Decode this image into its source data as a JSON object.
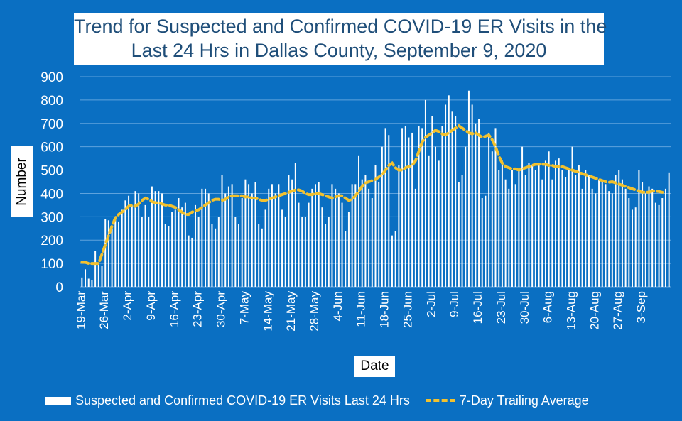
{
  "chart_data": {
    "type": "bar",
    "title_line1": "Trend for Suspected and Confirmed COVID-19 ER Visits in the",
    "title_line2": "Last 24 Hrs in Dallas County, September 9, 2020",
    "xlabel": "Date",
    "ylabel": "Number",
    "ylim": [
      0,
      900
    ],
    "yticks": [
      0,
      100,
      200,
      300,
      400,
      500,
      600,
      700,
      800,
      900
    ],
    "start_date": "19-Mar",
    "xtick_labels": [
      "19-Mar",
      "26-Mar",
      "2-Apr",
      "9-Apr",
      "16-Apr",
      "23-Apr",
      "30-Apr",
      "7-May",
      "14-May",
      "21-May",
      "28-May",
      "4-Jun",
      "11-Jun",
      "18-Jun",
      "25-Jun",
      "2-Jul",
      "9-Jul",
      "16-Jul",
      "23-Jul",
      "30-Jul",
      "6-Aug",
      "13-Aug",
      "20-Aug",
      "27-Aug",
      "3-Sep"
    ],
    "grid": true,
    "legend_position": "bottom",
    "series": [
      {
        "name": "Suspected and Confirmed COVID-19 ER Visits Last 24 Hrs",
        "type": "bar",
        "color": "#ffffff",
        "values": [
          40,
          75,
          35,
          30,
          155,
          100,
          90,
          290,
          285,
          260,
          300,
          280,
          330,
          370,
          390,
          350,
          410,
          400,
          300,
          350,
          300,
          430,
          410,
          410,
          400,
          270,
          260,
          320,
          330,
          380,
          340,
          360,
          220,
          210,
          350,
          300,
          420,
          420,
          400,
          270,
          250,
          300,
          480,
          400,
          430,
          440,
          300,
          270,
          380,
          460,
          440,
          400,
          450,
          270,
          250,
          330,
          420,
          440,
          400,
          440,
          330,
          300,
          480,
          460,
          530,
          360,
          300,
          300,
          360,
          420,
          440,
          450,
          340,
          270,
          300,
          440,
          420,
          400,
          360,
          240,
          320,
          440,
          440,
          560,
          460,
          480,
          420,
          380,
          520,
          450,
          600,
          680,
          650,
          220,
          240,
          520,
          680,
          690,
          640,
          660,
          420,
          690,
          680,
          800,
          560,
          730,
          600,
          540,
          690,
          780,
          820,
          750,
          730,
          450,
          480,
          600,
          840,
          780,
          700,
          720,
          380,
          390,
          660,
          580,
          680,
          500,
          540,
          460,
          420,
          500,
          440,
          500,
          600,
          480,
          530,
          520,
          500,
          520,
          460,
          540,
          580,
          460,
          540,
          550,
          500,
          470,
          500,
          600,
          480,
          520,
          420,
          500,
          480,
          420,
          400,
          460,
          450,
          440,
          410,
          400,
          480,
          500,
          460,
          420,
          380,
          330,
          340,
          500,
          450,
          400,
          430,
          420,
          360,
          350,
          380,
          420,
          490
        ]
      },
      {
        "name": "7-Day Trailing Average",
        "type": "line",
        "color": "#f2c12e",
        "values": [
          105,
          105,
          100,
          100,
          100,
          100,
          140,
          180,
          220,
          260,
          295,
          310,
          320,
          330,
          345,
          350,
          345,
          355,
          370,
          380,
          375,
          365,
          360,
          360,
          355,
          350,
          350,
          345,
          340,
          330,
          320,
          310,
          310,
          320,
          325,
          330,
          340,
          350,
          360,
          370,
          375,
          375,
          370,
          375,
          385,
          390,
          390,
          390,
          390,
          385,
          385,
          380,
          380,
          375,
          370,
          370,
          375,
          380,
          385,
          390,
          395,
          400,
          405,
          410,
          415,
          415,
          410,
          400,
          395,
          395,
          400,
          400,
          395,
          390,
          385,
          380,
          385,
          390,
          390,
          380,
          370,
          375,
          390,
          410,
          430,
          445,
          450,
          455,
          460,
          470,
          480,
          500,
          520,
          530,
          510,
          500,
          500,
          510,
          515,
          520,
          540,
          580,
          620,
          640,
          650,
          660,
          670,
          665,
          655,
          650,
          660,
          670,
          680,
          690,
          680,
          670,
          660,
          655,
          660,
          650,
          640,
          645,
          650,
          630,
          600,
          560,
          530,
          515,
          510,
          505,
          505,
          500,
          505,
          510,
          515,
          520,
          525,
          525,
          525,
          525,
          520,
          520,
          515,
          515,
          515,
          510,
          505,
          500,
          495,
          490,
          485,
          480,
          475,
          470,
          465,
          460,
          455,
          450,
          448,
          450,
          445,
          440,
          435,
          430,
          425,
          420,
          415,
          410,
          405,
          405,
          405,
          410,
          410,
          408,
          405
        ]
      }
    ]
  }
}
